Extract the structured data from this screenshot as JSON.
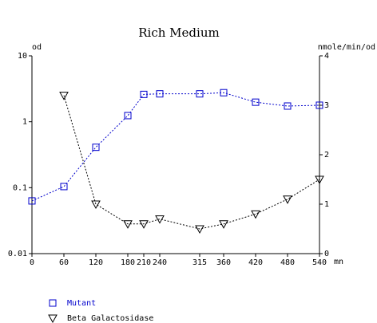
{
  "chart_data": {
    "type": "line",
    "title": "Rich Medium",
    "x_unit": "mn",
    "y_label": "od",
    "y2_label": "nmole/min/od",
    "x": [
      0,
      60,
      120,
      180,
      210,
      240,
      315,
      360,
      420,
      480,
      540
    ],
    "xlim": [
      0,
      540
    ],
    "xticks": [
      0,
      60,
      120,
      180,
      210,
      240,
      315,
      360,
      420,
      480,
      540
    ],
    "ylim": [
      0.01,
      10
    ],
    "yticks": [
      0.01,
      0.1,
      1,
      10
    ],
    "log_y": true,
    "y2lim": [
      0,
      4
    ],
    "y2ticks": [
      0,
      1,
      2,
      3,
      4
    ],
    "series": [
      {
        "name": "Mutant",
        "color": "#0000cc",
        "marker": "square",
        "values": [
          0.063,
          0.104,
          0.41,
          1.24,
          2.6,
          2.65,
          2.65,
          2.76,
          1.98,
          1.73,
          1.78
        ]
      },
      {
        "name": "Beta Galactosidase",
        "color": "#000000",
        "marker": "triangle-down",
        "axis": "y2",
        "values": [
          null,
          3.2,
          1.0,
          0.6,
          0.6,
          0.7,
          0.5,
          0.6,
          0.8,
          1.1,
          1.5
        ]
      }
    ]
  }
}
